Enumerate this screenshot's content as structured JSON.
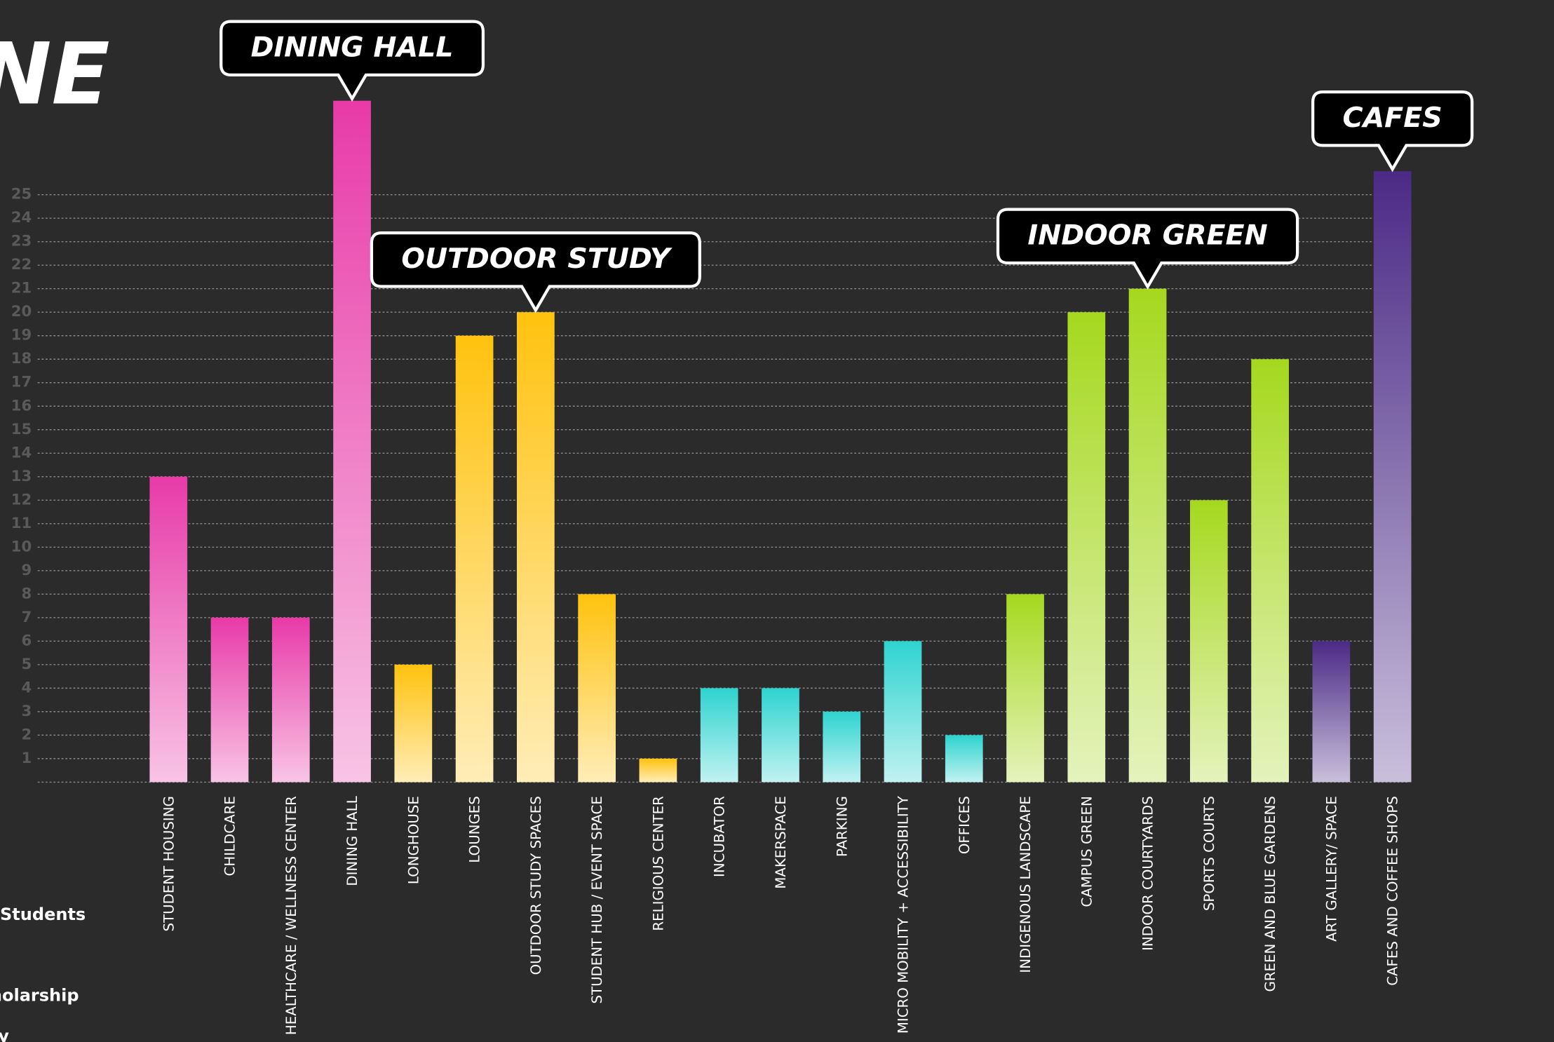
{
  "chart_data": {
    "type": "bar",
    "title_fragment": "NE",
    "side_fragments": [
      "Students",
      "holarship",
      "y"
    ],
    "categories": [
      "STUDENT HOUSING",
      "CHILDCARE",
      "HEALTHCARE / WELLNESS  CENTER",
      "DINING HALL",
      "LONGHOUSE",
      "LOUNGES",
      "OUTDOOR STUDY SPACES",
      "STUDENT HUB / EVENT SPACE",
      "RELIGIOUS CENTER",
      "INCUBATOR",
      "MAKERSPACE",
      "PARKING",
      "MICRO MOBILITY + ACCESSIBILITY",
      "OFFICES",
      "INDIGENOUS LANDSCAPE",
      "CAMPUS GREEN",
      "INDOOR COURTYARDS",
      "SPORTS COURTS",
      "GREEN AND BLUE GARDENS",
      "ART GALLERY/ SPACE",
      "CAFES AND COFFEE SHOPS"
    ],
    "values": [
      13,
      7,
      7,
      29,
      5,
      19,
      20,
      8,
      1,
      4,
      4,
      3,
      6,
      2,
      8,
      20,
      21,
      12,
      18,
      6,
      26
    ],
    "colors": [
      "#e83aa8",
      "#e83aa8",
      "#e83aa8",
      "#e83aa8",
      "#ffc20e",
      "#ffc20e",
      "#ffc20e",
      "#ffc20e",
      "#ffc20e",
      "#2ed3cf",
      "#2ed3cf",
      "#2ed3cf",
      "#2ed3cf",
      "#2ed3cf",
      "#a6d81e",
      "#a6d81e",
      "#a6d81e",
      "#a6d81e",
      "#a6d81e",
      "#4b2a86",
      "#4b2a86"
    ],
    "ylim": [
      0,
      30
    ],
    "yticks": [
      1,
      2,
      3,
      4,
      5,
      6,
      7,
      8,
      9,
      10,
      11,
      12,
      13,
      14,
      15,
      16,
      17,
      18,
      19,
      20,
      21,
      22,
      23,
      24,
      25
    ],
    "grid": true,
    "annotations": [
      {
        "text": "DINING HALL",
        "target": 3
      },
      {
        "text": "OUTDOOR STUDY",
        "target": 6
      },
      {
        "text": "INDOOR GREEN",
        "target": 16
      },
      {
        "text": "CAFES",
        "target": 20
      }
    ]
  }
}
